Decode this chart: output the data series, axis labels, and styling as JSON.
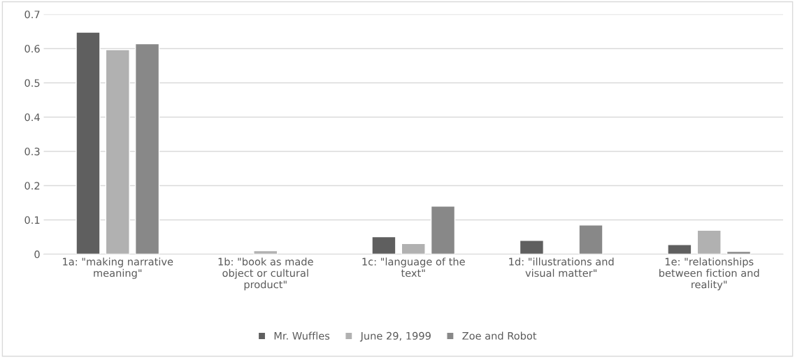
{
  "chart_data": {
    "type": "bar",
    "categories": [
      "1a: \"making narrative\nmeaning\"",
      "1b: \"book as made\nobject or cultural\nproduct\"",
      "1c: \"language of the\ntext\"",
      "1d: \"illustrations and\nvisual matter\"",
      "1e: \"relationships\nbetween fiction and\nreality\""
    ],
    "series": [
      {
        "name": "Mr. Wuffles",
        "color": "#5f5f5f",
        "values": [
          0.648,
          null,
          0.051,
          0.04,
          0.028
        ]
      },
      {
        "name": "June 29, 1999",
        "color": "#b1b1b1",
        "values": [
          0.597,
          0.01,
          0.031,
          null,
          0.07
        ]
      },
      {
        "name": "Zoe and Robot",
        "color": "#888888",
        "values": [
          0.614,
          null,
          0.14,
          0.085,
          0.008
        ]
      }
    ],
    "ylim": [
      0,
      0.7
    ],
    "yticks": [
      0,
      0.1,
      0.2,
      0.3,
      0.4,
      0.5,
      0.6,
      0.7
    ],
    "grid": "y",
    "legend": "bottom"
  }
}
